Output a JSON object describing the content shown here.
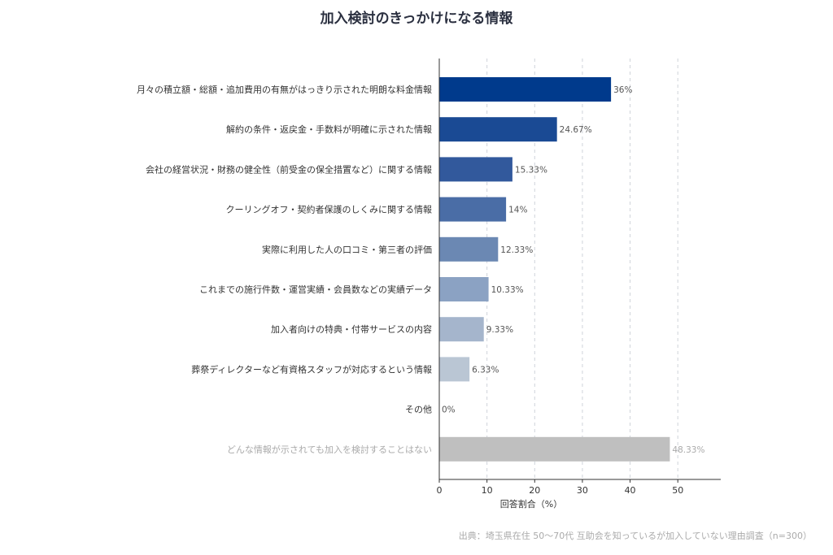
{
  "title": "加入検討のきっかけになる情報",
  "source": "出典：埼玉県在住 50〜70代 互助会を知っているが加入していない理由調査（n=300）",
  "chart_data": {
    "type": "bar",
    "orientation": "horizontal",
    "title": "加入検討のきっかけになる情報",
    "xlabel": "回答割合（%）",
    "ylabel": "",
    "xlim": [
      0,
      59
    ],
    "xticks": [
      0,
      10,
      20,
      30,
      40,
      50
    ],
    "grid": "vertical-dashed",
    "categories": [
      "月々の積立額・総額・追加費用の有無がはっきり示された明朗な料金情報",
      "解約の条件・返戻金・手数料が明確に示された情報",
      "会社の経営状況・財務の健全性（前受金の保全措置など）に関する情報",
      "クーリングオフ・契約者保護のしくみに関する情報",
      "実際に利用した人の口コミ・第三者の評価",
      "これまでの施行件数・運営実績・会員数などの実績データ",
      "加入者向けの特典・付帯サービスの内容",
      "葬祭ディレクターなど有資格スタッフが対応するという情報",
      "その他",
      "どんな情報が示されても加入を検討することはない"
    ],
    "values": [
      36,
      24.67,
      15.33,
      14,
      12.33,
      10.33,
      9.33,
      6.33,
      0,
      48.33
    ],
    "value_labels": [
      "36%",
      "24.67%",
      "15.33%",
      "14%",
      "12.33%",
      "10.33%",
      "9.33%",
      "6.33%",
      "0%",
      "48.33%"
    ],
    "colors": [
      "#003a8c",
      "#1a4a94",
      "#32599c",
      "#4a6da6",
      "#6b88b3",
      "#8ba2c3",
      "#a5b5cc",
      "#bac6d4",
      "#c9d2de",
      "#bfbfbf"
    ],
    "muted": [
      false,
      false,
      false,
      false,
      false,
      false,
      false,
      false,
      false,
      true
    ]
  }
}
